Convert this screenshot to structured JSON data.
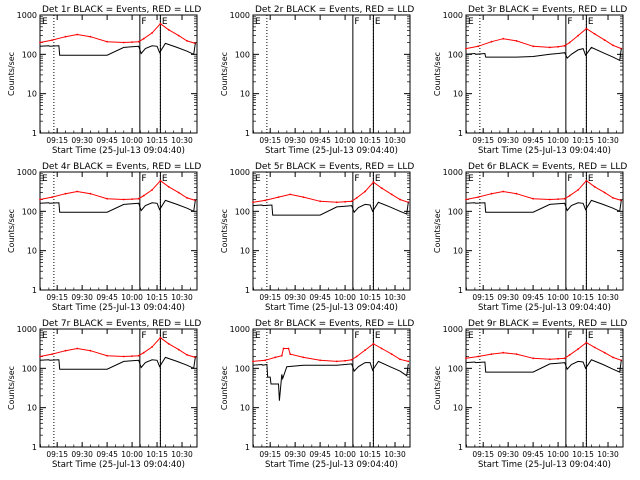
{
  "chart_data": {
    "type": "line",
    "grid": false,
    "legend": "none",
    "ylabel": "Counts/sec",
    "xlabel": "Start Time (25-Jul-13 09:04:40)",
    "y_scale": "log",
    "ylim": [
      1,
      1000
    ],
    "y_ticks": [
      "1",
      "10",
      "100",
      "1000"
    ],
    "x_ticks": [
      "09:15",
      "09:30",
      "09:45",
      "10:00",
      "10:15",
      "10:30"
    ],
    "xlim": [
      "09:04:40",
      "10:39:00"
    ],
    "colors": {
      "events": "#000000",
      "lld": "#ff0000"
    },
    "markers": [
      {
        "label": "E",
        "time": "09:05:00"
      },
      {
        "label": "F",
        "time": "10:04:40"
      },
      {
        "label": "E",
        "time": "10:17:00"
      }
    ],
    "dotted_lines": [
      "09:13:00",
      "10:17:00"
    ],
    "panels": [
      {
        "title": "Det 1r BLACK = Events, RED = LLD",
        "series": [
          {
            "key": "lld",
            "x": [
              "09:04:40",
              "09:12:00",
              "09:20:00",
              "09:27:00",
              "09:35:00",
              "09:45:00",
              "09:55:00",
              "10:00:00",
              "10:04:00",
              "10:07:00",
              "10:12:00",
              "10:17:00",
              "10:22:00",
              "10:28:00",
              "10:33:00",
              "10:38:00"
            ],
            "values": [
              200,
              230,
              280,
              320,
              280,
              210,
              200,
              205,
              210,
              250,
              350,
              600,
              420,
              300,
              220,
              190
            ]
          },
          {
            "key": "events",
            "x": [
              "09:04:40",
              "09:10:00",
              "09:10:30",
              "09:16:00",
              "09:16:30",
              "09:25:00",
              "09:35:00",
              "09:45:00",
              "09:55:00",
              "10:00:00",
              "10:04:00",
              "10:05:30",
              "10:08:00",
              "10:12:00",
              "10:15:00",
              "10:16:30",
              "10:20:00",
              "10:27:00",
              "10:33:00",
              "10:37:00",
              "10:38:00"
            ],
            "values": [
              160,
              165,
              160,
              165,
              95,
              95,
              95,
              95,
              150,
              155,
              160,
              105,
              140,
              165,
              160,
              110,
              190,
              150,
              120,
              100,
              190
            ]
          }
        ]
      },
      {
        "title": "Det 2r BLACK = Events, RED = LLD",
        "series": []
      },
      {
        "title": "Det 3r BLACK = Events, RED = LLD",
        "series": [
          {
            "key": "lld",
            "x": [
              "09:04:40",
              "09:12:00",
              "09:20:00",
              "09:27:00",
              "09:35:00",
              "09:45:00",
              "09:55:00",
              "10:00:00",
              "10:04:00",
              "10:07:00",
              "10:12:00",
              "10:17:00",
              "10:22:00",
              "10:28:00",
              "10:33:00",
              "10:38:00"
            ],
            "values": [
              140,
              160,
              210,
              250,
              220,
              160,
              150,
              155,
              165,
              200,
              300,
              450,
              330,
              230,
              170,
              140
            ]
          },
          {
            "key": "events",
            "x": [
              "09:04:40",
              "09:10:00",
              "09:10:30",
              "09:16:00",
              "09:16:30",
              "09:25:00",
              "09:35:00",
              "09:45:00",
              "09:55:00",
              "10:00:00",
              "10:04:00",
              "10:05:30",
              "10:08:00",
              "10:12:00",
              "10:15:00",
              "10:16:30",
              "10:20:00",
              "10:27:00",
              "10:33:00",
              "10:37:00",
              "10:38:00"
            ],
            "values": [
              100,
              105,
              100,
              105,
              85,
              85,
              85,
              88,
              100,
              105,
              110,
              80,
              100,
              130,
              140,
              95,
              150,
              110,
              85,
              70,
              140
            ]
          }
        ]
      },
      {
        "title": "Det 4r BLACK = Events, RED = LLD",
        "series": [
          {
            "key": "lld",
            "x": [
              "09:04:40",
              "09:12:00",
              "09:20:00",
              "09:27:00",
              "09:35:00",
              "09:45:00",
              "09:55:00",
              "10:00:00",
              "10:04:00",
              "10:07:00",
              "10:12:00",
              "10:17:00",
              "10:22:00",
              "10:28:00",
              "10:33:00",
              "10:38:00"
            ],
            "values": [
              200,
              230,
              280,
              320,
              280,
              210,
              200,
              205,
              210,
              250,
              350,
              600,
              420,
              300,
              220,
              190
            ]
          },
          {
            "key": "events",
            "x": [
              "09:04:40",
              "09:10:00",
              "09:10:30",
              "09:16:00",
              "09:16:30",
              "09:25:00",
              "09:35:00",
              "09:45:00",
              "09:55:00",
              "10:00:00",
              "10:04:00",
              "10:05:30",
              "10:08:00",
              "10:12:00",
              "10:15:00",
              "10:16:30",
              "10:20:00",
              "10:27:00",
              "10:33:00",
              "10:37:00",
              "10:38:00"
            ],
            "values": [
              160,
              165,
              160,
              165,
              95,
              95,
              95,
              95,
              150,
              155,
              160,
              105,
              140,
              165,
              160,
              110,
              190,
              150,
              120,
              100,
              190
            ]
          }
        ]
      },
      {
        "title": "Det 5r BLACK = Events, RED = LLD",
        "series": [
          {
            "key": "lld",
            "x": [
              "09:04:40",
              "09:12:00",
              "09:20:00",
              "09:27:00",
              "09:35:00",
              "09:45:00",
              "09:55:00",
              "10:00:00",
              "10:04:00",
              "10:07:00",
              "10:12:00",
              "10:17:00",
              "10:22:00",
              "10:28:00",
              "10:33:00",
              "10:38:00"
            ],
            "values": [
              170,
              190,
              230,
              270,
              230,
              180,
              170,
              175,
              180,
              220,
              320,
              550,
              390,
              270,
              200,
              170
            ]
          },
          {
            "key": "events",
            "x": [
              "09:04:40",
              "09:10:00",
              "09:10:30",
              "09:16:00",
              "09:16:30",
              "09:25:00",
              "09:35:00",
              "09:45:00",
              "09:55:00",
              "10:00:00",
              "10:04:00",
              "10:05:30",
              "10:08:00",
              "10:12:00",
              "10:15:00",
              "10:16:30",
              "10:20:00",
              "10:27:00",
              "10:33:00",
              "10:37:00",
              "10:38:00"
            ],
            "values": [
              140,
              145,
              140,
              145,
              80,
              80,
              80,
              80,
              130,
              135,
              140,
              95,
              125,
              150,
              145,
              100,
              170,
              130,
              100,
              85,
              170
            ]
          }
        ]
      },
      {
        "title": "Det 6r BLACK = Events, RED = LLD",
        "series": [
          {
            "key": "lld",
            "x": [
              "09:04:40",
              "09:12:00",
              "09:20:00",
              "09:27:00",
              "09:35:00",
              "09:45:00",
              "09:55:00",
              "10:00:00",
              "10:04:00",
              "10:07:00",
              "10:12:00",
              "10:17:00",
              "10:22:00",
              "10:28:00",
              "10:33:00",
              "10:38:00"
            ],
            "values": [
              200,
              230,
              280,
              320,
              280,
              210,
              200,
              205,
              210,
              250,
              350,
              600,
              420,
              300,
              220,
              190
            ]
          },
          {
            "key": "events",
            "x": [
              "09:04:40",
              "09:10:00",
              "09:10:30",
              "09:16:00",
              "09:16:30",
              "09:25:00",
              "09:35:00",
              "09:45:00",
              "09:55:00",
              "10:00:00",
              "10:04:00",
              "10:05:30",
              "10:08:00",
              "10:12:00",
              "10:15:00",
              "10:16:30",
              "10:20:00",
              "10:27:00",
              "10:33:00",
              "10:37:00",
              "10:38:00"
            ],
            "values": [
              160,
              165,
              160,
              165,
              95,
              95,
              95,
              95,
              150,
              155,
              160,
              105,
              140,
              165,
              160,
              110,
              190,
              150,
              120,
              100,
              190
            ]
          }
        ]
      },
      {
        "title": "Det 7r BLACK = Events, RED = LLD",
        "series": [
          {
            "key": "lld",
            "x": [
              "09:04:40",
              "09:12:00",
              "09:20:00",
              "09:27:00",
              "09:35:00",
              "09:45:00",
              "09:55:00",
              "10:00:00",
              "10:04:00",
              "10:07:00",
              "10:12:00",
              "10:17:00",
              "10:22:00",
              "10:28:00",
              "10:33:00",
              "10:38:00"
            ],
            "values": [
              200,
              230,
              280,
              320,
              280,
              210,
              200,
              205,
              210,
              250,
              350,
              600,
              420,
              300,
              220,
              190
            ]
          },
          {
            "key": "events",
            "x": [
              "09:04:40",
              "09:10:00",
              "09:10:30",
              "09:16:00",
              "09:16:30",
              "09:25:00",
              "09:35:00",
              "09:45:00",
              "09:55:00",
              "10:00:00",
              "10:04:00",
              "10:05:30",
              "10:08:00",
              "10:12:00",
              "10:15:00",
              "10:16:30",
              "10:20:00",
              "10:27:00",
              "10:33:00",
              "10:37:00",
              "10:38:00"
            ],
            "values": [
              160,
              165,
              160,
              165,
              95,
              95,
              95,
              95,
              150,
              155,
              160,
              105,
              140,
              165,
              160,
              110,
              190,
              150,
              120,
              100,
              190
            ]
          }
        ]
      },
      {
        "title": "Det 8r BLACK = Events, RED = LLD",
        "series": [
          {
            "key": "lld",
            "x": [
              "09:04:40",
              "09:12:00",
              "09:18:00",
              "09:22:00",
              "09:23:00",
              "09:26:00",
              "09:27:00",
              "09:35:00",
              "09:45:00",
              "09:55:00",
              "10:00:00",
              "10:04:00",
              "10:07:00",
              "10:12:00",
              "10:17:00",
              "10:22:00",
              "10:28:00",
              "10:33:00",
              "10:38:00"
            ],
            "values": [
              150,
              160,
              190,
              210,
              320,
              320,
              230,
              190,
              160,
              150,
              155,
              165,
              200,
              290,
              420,
              320,
              230,
              170,
              150
            ]
          },
          {
            "key": "events",
            "x": [
              "09:04:40",
              "09:10:00",
              "09:10:30",
              "09:13:00",
              "09:13:30",
              "09:15:00",
              "09:15:30",
              "09:20:00",
              "09:20:30",
              "09:22:00",
              "09:22:30",
              "09:25:00",
              "09:35:00",
              "09:45:00",
              "09:55:00",
              "10:00:00",
              "10:04:00",
              "10:05:30",
              "10:08:00",
              "10:12:00",
              "10:15:00",
              "10:16:30",
              "10:20:00",
              "10:27:00",
              "10:33:00",
              "10:37:00",
              "10:38:00"
            ],
            "values": [
              120,
              125,
              120,
              125,
              60,
              60,
              40,
              40,
              15,
              70,
              55,
              110,
              120,
              120,
              120,
              125,
              130,
              85,
              110,
              140,
              140,
              90,
              150,
              110,
              85,
              65,
              130
            ]
          }
        ]
      },
      {
        "title": "Det 9r BLACK = Events, RED = LLD",
        "series": [
          {
            "key": "lld",
            "x": [
              "09:04:40",
              "09:12:00",
              "09:20:00",
              "09:27:00",
              "09:35:00",
              "09:45:00",
              "09:55:00",
              "10:00:00",
              "10:04:00",
              "10:07:00",
              "10:12:00",
              "10:17:00",
              "10:22:00",
              "10:28:00",
              "10:33:00",
              "10:38:00"
            ],
            "values": [
              180,
              200,
              230,
              250,
              230,
              180,
              170,
              175,
              180,
              220,
              310,
              450,
              340,
              250,
              190,
              160
            ]
          },
          {
            "key": "events",
            "x": [
              "09:04:40",
              "09:10:00",
              "09:10:30",
              "09:16:00",
              "09:16:30",
              "09:25:00",
              "09:35:00",
              "09:45:00",
              "09:55:00",
              "10:00:00",
              "10:04:00",
              "10:05:30",
              "10:08:00",
              "10:12:00",
              "10:15:00",
              "10:16:30",
              "10:20:00",
              "10:27:00",
              "10:33:00",
              "10:37:00",
              "10:38:00"
            ],
            "values": [
              140,
              145,
              140,
              145,
              80,
              80,
              80,
              80,
              130,
              135,
              140,
              95,
              125,
              150,
              145,
              100,
              165,
              125,
              95,
              80,
              160
            ]
          }
        ]
      }
    ]
  }
}
